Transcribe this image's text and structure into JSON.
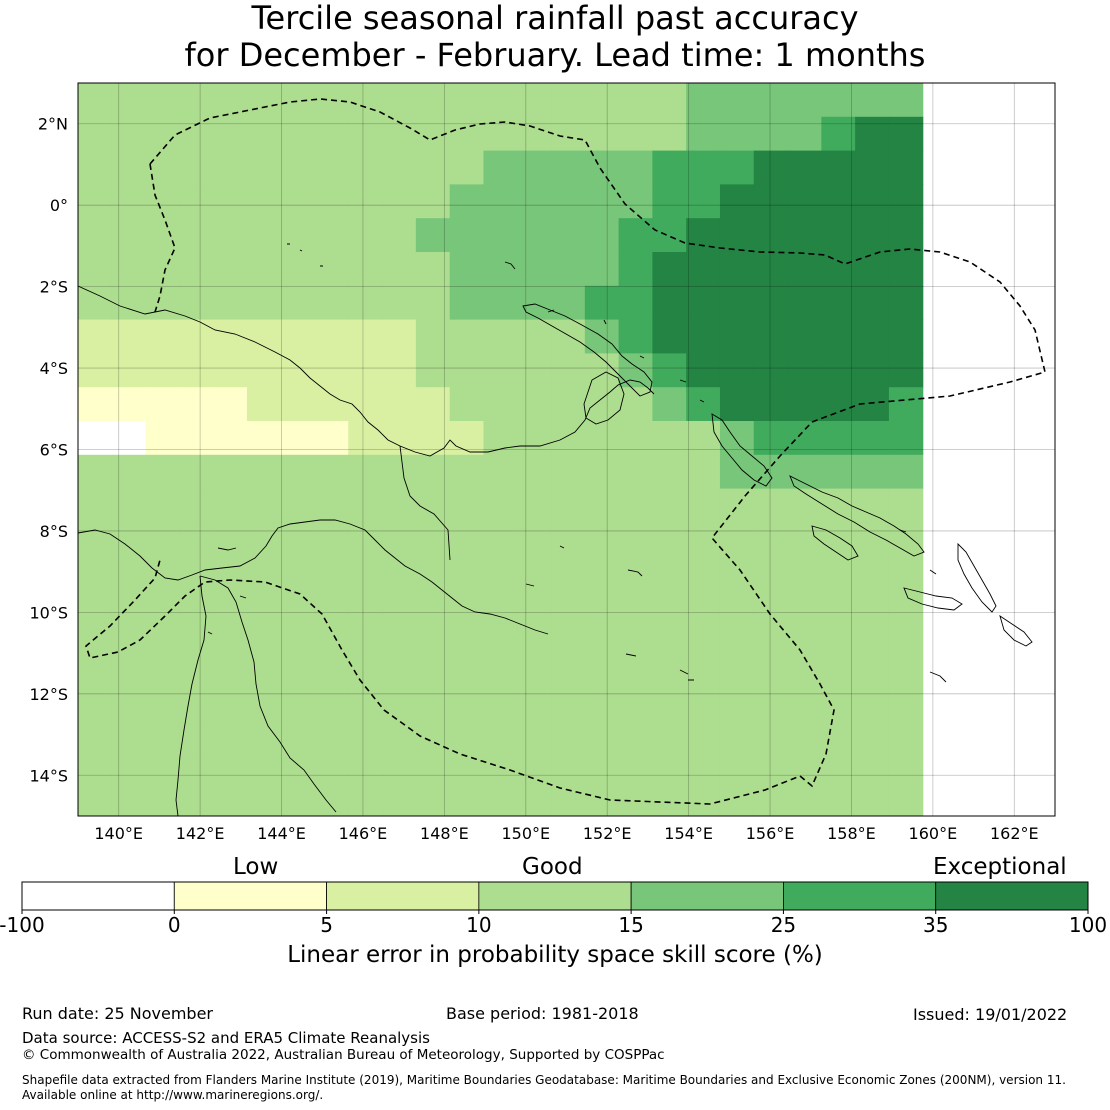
{
  "title": {
    "line1": "Tercile seasonal rainfall past accuracy",
    "line2": "for December - February. Lead time: 1 months"
  },
  "map": {
    "lon_range": [
      139,
      163
    ],
    "lat_range": [
      -15,
      3
    ],
    "lon_ticks": [
      "140°E",
      "142°E",
      "144°E",
      "146°E",
      "148°E",
      "150°E",
      "152°E",
      "154°E",
      "156°E",
      "158°E",
      "160°E",
      "162°E"
    ],
    "lat_ticks": [
      "2°N",
      "0°",
      "2°S",
      "4°S",
      "6°S",
      "8°S",
      "10°S",
      "12°S",
      "14°S"
    ],
    "cell_size_deg": 0.83,
    "grid_rows": [
      "3333333333333333334444444",
      "3333333333333333334444566",
      "3333333333334444455566666",
      "3333333333344444455666666",
      "3333333333444444556666666",
      "3333333333344444566666666",
      "3333333333344445566666666",
      "2222222222333334566666666",
      "2222222222333333456666666",
      "1111122222233333345666665",
      "0011111122223333333455555",
      "3333333333333333333444444",
      "3333333333333333333333333",
      "3333333333333333333333333",
      "3333333333333333333333333",
      "3333333333333333333333333",
      "3333333333333333333333333",
      "3333333333333333333333333",
      "3333333333333333333333333",
      "3333333333333333333333333",
      "3333333333333333333333333",
      "3333333333333333333333333"
    ]
  },
  "colorbar": {
    "categories": [
      "Low",
      "Good",
      "Exceptional"
    ],
    "ticks": [
      "-100",
      "0",
      "5",
      "10",
      "15",
      "25",
      "35",
      "100"
    ],
    "colors": [
      "#ffffff",
      "#ffffcc",
      "#d9f0a3",
      "#addd8e",
      "#78c679",
      "#41ab5d",
      "#238443"
    ],
    "label": "Linear error in probability space skill score (%)"
  },
  "footer": {
    "run_date": "Run date: 25 November",
    "base_period": "Base period: 1981-2018",
    "issued": "Issued: 19/01/2022",
    "data_source": "Data source: ACCESS-S2 and ERA5 Climate Reanalysis",
    "copyright": "© Commonwealth of Australia 2022, Australian Bureau of Meteorology, Supported by COSPPac",
    "shapefile_line1": "Shapefile data extracted from Flanders Marine Institute (2019), Maritime Boundaries Geodatabase: Maritime Boundaries and Exclusive Economic Zones (200NM), version 11.",
    "shapefile_line2": "Available online at http://www.marineregions.org/."
  }
}
